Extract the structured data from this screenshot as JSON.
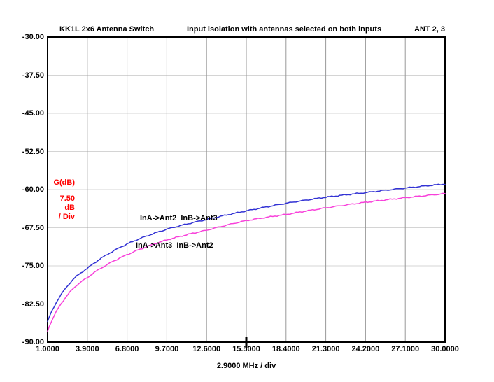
{
  "header": {
    "left": "KK1L 2x6 Antenna Switch",
    "center": "Input isolation with antennas selected on both inputs",
    "right": "ANT 2, 3"
  },
  "y_axis_unit_block": {
    "quantity": "G(dB)",
    "per_div_value": "7.50",
    "per_div_unit": "dB",
    "per_div_suffix": "/ Div"
  },
  "x_axis_caption": "2.9000 MHz / div",
  "annotations": {
    "blue_label": "InA->Ant2  InB->Ant3",
    "magenta_label": "InA->Ant3  InB->Ant2"
  },
  "colors": {
    "blue_trace": "#3232D4",
    "magenta_trace": "#F840DA",
    "label_red": "#FF0000",
    "grid_vertical": "#999999",
    "grid_horizontal": "#D4D4D4",
    "border": "#000000",
    "background": "#FFFFFF"
  },
  "chart_data": {
    "type": "line",
    "title": "Input isolation with antennas selected on both inputs",
    "subtitle": "KK1L 2x6 Antenna Switch",
    "corner_note": "ANT 2, 3",
    "xlabel": "2.9000 MHz / div",
    "ylabel": "G(dB), 7.50 dB / Div",
    "xlim": [
      1.0,
      30.0
    ],
    "ylim": [
      -90.0,
      -30.0
    ],
    "x_step_mhz": 2.9,
    "y_step_db": 7.5,
    "grid": true,
    "legend_position": "inline-annotations",
    "marker_x": 15.5,
    "x_tick_labels": [
      "1.0000",
      "3.9000",
      "6.8000",
      "9.7000",
      "12.6000",
      "15.5000",
      "18.4000",
      "21.3000",
      "24.2000",
      "27.1000",
      "30.0000"
    ],
    "y_tick_labels": [
      "-30.00",
      "-37.50",
      "-45.00",
      "-52.50",
      "-60.00",
      "-67.50",
      "-75.00",
      "-82.50",
      "-90.00"
    ],
    "series": [
      {
        "name": "InA->Ant2  InB->Ant3",
        "color": "#3232D4",
        "x": [
          1.0,
          1.5,
          2.0,
          2.5,
          3.0,
          3.9,
          6.8,
          9.7,
          12.6,
          15.5,
          18.4,
          21.3,
          24.2,
          27.1,
          30.0
        ],
        "y": [
          -86.0,
          -82.9,
          -80.6,
          -78.8,
          -77.3,
          -75.5,
          -70.7,
          -67.8,
          -65.9,
          -64.2,
          -62.7,
          -61.5,
          -60.6,
          -59.7,
          -58.9
        ]
      },
      {
        "name": "InA->Ant3  InB->Ant2",
        "color": "#F840DA",
        "x": [
          1.0,
          1.5,
          2.0,
          2.5,
          3.0,
          3.9,
          6.8,
          9.7,
          12.6,
          15.5,
          18.4,
          21.3,
          24.2,
          27.1,
          30.0
        ],
        "y": [
          -87.8,
          -84.7,
          -82.4,
          -80.6,
          -79.1,
          -77.3,
          -72.8,
          -69.9,
          -68.0,
          -66.1,
          -64.9,
          -63.6,
          -62.5,
          -61.6,
          -60.8
        ]
      }
    ]
  }
}
